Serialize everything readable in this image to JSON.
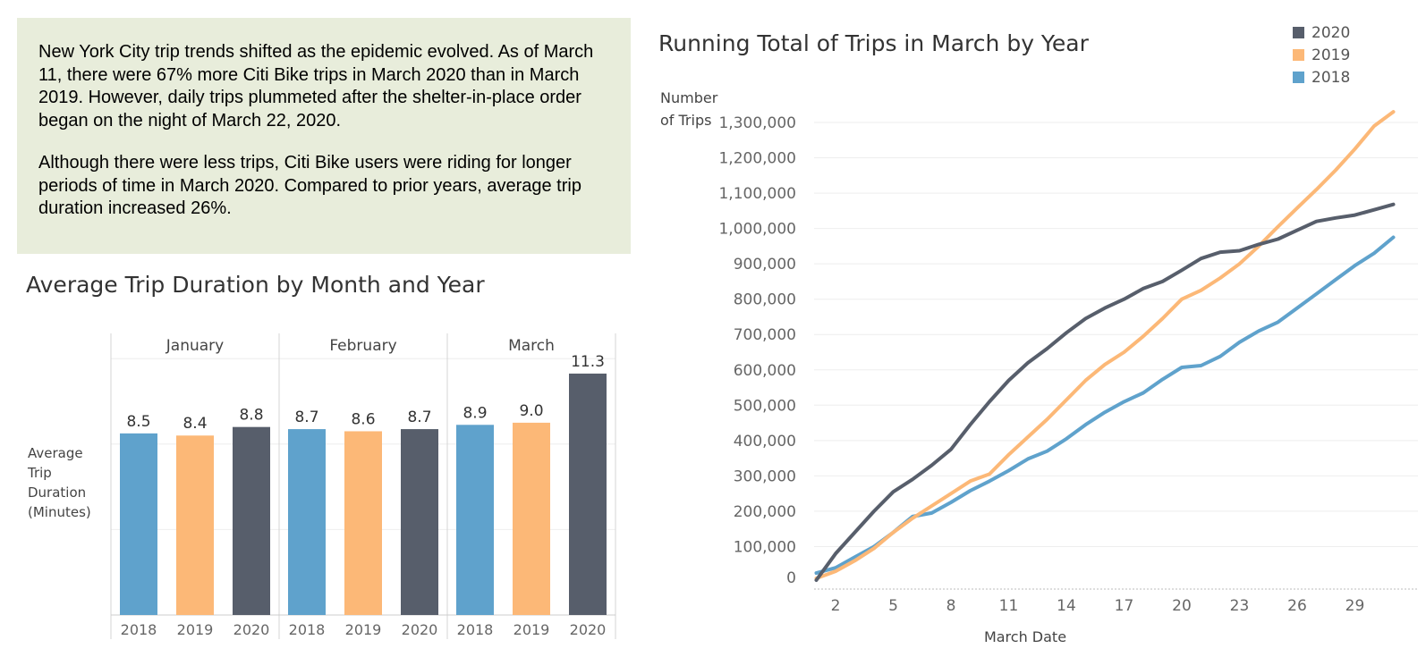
{
  "note": {
    "paragraph1": "New York City trip trends shifted as the epidemic evolved. As of March 11, there were 67% more Citi Bike trips in March 2020 than in March 2019. However, daily trips plummeted after the shelter-in-place order began on the night of March 22, 2020.",
    "paragraph2": "Although there were less trips, Citi Bike users were riding for longer periods of time in March 2020. Compared to prior years, average trip duration increased 26%."
  },
  "colors": {
    "2018": "#5fa2cc",
    "2019": "#fcb877",
    "2020": "#575e6b"
  },
  "chart_data": [
    {
      "type": "bar",
      "title": "Average Trip Duration by Month and Year",
      "ylabel_lines": [
        "Average",
        "Trip",
        "Duration",
        "(Minutes)"
      ],
      "groups": [
        "January",
        "February",
        "March"
      ],
      "categories": [
        "2018",
        "2019",
        "2020"
      ],
      "values": [
        [
          8.5,
          8.4,
          8.8
        ],
        [
          8.7,
          8.6,
          8.7
        ],
        [
          8.9,
          9.0,
          11.3
        ]
      ],
      "value_labels": [
        [
          "8.5",
          "8.4",
          "8.8"
        ],
        [
          "8.7",
          "8.6",
          "8.7"
        ],
        [
          "8.9",
          "9.0",
          "11.3"
        ]
      ],
      "ylim": [
        0,
        12
      ]
    },
    {
      "type": "line",
      "title": "Running Total of Trips in March by Year",
      "xlabel": "March Date",
      "ylabel_lines": [
        "Number",
        "of Trips"
      ],
      "x_ticks": [
        2,
        5,
        8,
        11,
        14,
        17,
        20,
        23,
        26,
        29
      ],
      "x_range": [
        1,
        31
      ],
      "y_ticks": [
        0,
        100000,
        200000,
        300000,
        400000,
        500000,
        600000,
        700000,
        800000,
        900000,
        1000000,
        1100000,
        1200000,
        1300000
      ],
      "y_tick_labels": [
        "0",
        "100,000",
        "200,000",
        "300,000",
        "400,000",
        "500,000",
        "600,000",
        "700,000",
        "800,000",
        "900,000",
        "1,000,000",
        "1,100,000",
        "1,200,000",
        "1,300,000"
      ],
      "ylim": [
        0,
        1300000
      ],
      "legend": [
        "2020",
        "2019",
        "2018"
      ],
      "series": [
        {
          "name": "2020",
          "values": [
            [
              1,
              5000
            ],
            [
              2,
              80000
            ],
            [
              3,
              140000
            ],
            [
              4,
              200000
            ],
            [
              5,
              255000
            ],
            [
              6,
              290000
            ],
            [
              7,
              330000
            ],
            [
              8,
              375000
            ],
            [
              9,
              445000
            ],
            [
              10,
              510000
            ],
            [
              11,
              570000
            ],
            [
              12,
              620000
            ],
            [
              13,
              660000
            ],
            [
              14,
              705000
            ],
            [
              15,
              745000
            ],
            [
              16,
              775000
            ],
            [
              17,
              800000
            ],
            [
              18,
              830000
            ],
            [
              19,
              850000
            ],
            [
              20,
              882000
            ],
            [
              21,
              915000
            ],
            [
              22,
              933000
            ],
            [
              23,
              937000
            ],
            [
              24,
              955000
            ],
            [
              25,
              970000
            ],
            [
              26,
              995000
            ],
            [
              27,
              1020000
            ],
            [
              28,
              1030000
            ],
            [
              29,
              1038000
            ],
            [
              30,
              1053000
            ],
            [
              31,
              1068000
            ]
          ]
        },
        {
          "name": "2019",
          "values": [
            [
              1,
              10000
            ],
            [
              2,
              30000
            ],
            [
              3,
              60000
            ],
            [
              4,
              95000
            ],
            [
              5,
              140000
            ],
            [
              6,
              180000
            ],
            [
              7,
              215000
            ],
            [
              8,
              250000
            ],
            [
              9,
              285000
            ],
            [
              10,
              305000
            ],
            [
              11,
              360000
            ],
            [
              12,
              410000
            ],
            [
              13,
              460000
            ],
            [
              14,
              515000
            ],
            [
              15,
              570000
            ],
            [
              16,
              615000
            ],
            [
              17,
              650000
            ],
            [
              18,
              695000
            ],
            [
              19,
              745000
            ],
            [
              20,
              800000
            ],
            [
              21,
              825000
            ],
            [
              22,
              860000
            ],
            [
              23,
              900000
            ],
            [
              24,
              950000
            ],
            [
              25,
              1005000
            ],
            [
              26,
              1058000
            ],
            [
              27,
              1110000
            ],
            [
              28,
              1165000
            ],
            [
              29,
              1225000
            ],
            [
              30,
              1290000
            ],
            [
              31,
              1330000
            ]
          ]
        },
        {
          "name": "2018",
          "values": [
            [
              1,
              25000
            ],
            [
              2,
              40000
            ],
            [
              3,
              70000
            ],
            [
              4,
              100000
            ],
            [
              5,
              140000
            ],
            [
              6,
              185000
            ],
            [
              7,
              195000
            ],
            [
              8,
              225000
            ],
            [
              9,
              258000
            ],
            [
              10,
              285000
            ],
            [
              11,
              315000
            ],
            [
              12,
              348000
            ],
            [
              13,
              370000
            ],
            [
              14,
              405000
            ],
            [
              15,
              445000
            ],
            [
              16,
              480000
            ],
            [
              17,
              510000
            ],
            [
              18,
              535000
            ],
            [
              19,
              573000
            ],
            [
              20,
              607000
            ],
            [
              21,
              612000
            ],
            [
              22,
              638000
            ],
            [
              23,
              678000
            ],
            [
              24,
              710000
            ],
            [
              25,
              735000
            ],
            [
              26,
              775000
            ],
            [
              27,
              815000
            ],
            [
              28,
              855000
            ],
            [
              29,
              895000
            ],
            [
              30,
              930000
            ],
            [
              31,
              975000
            ]
          ]
        }
      ]
    }
  ]
}
